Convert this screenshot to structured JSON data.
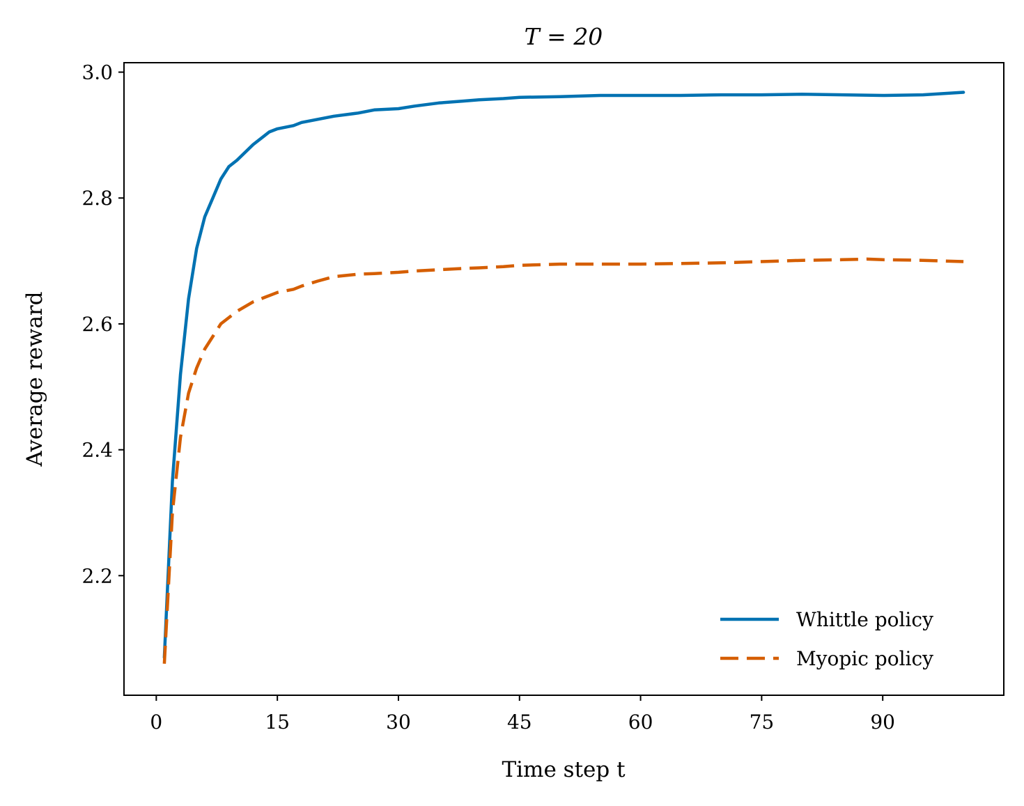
{
  "chart_data": {
    "type": "line",
    "title": "T = 20",
    "xlabel": "Time step t",
    "ylabel": "Average reward",
    "xlim": [
      -4,
      105
    ],
    "ylim": [
      2.01,
      3.015
    ],
    "xticks": [
      0,
      15,
      30,
      45,
      60,
      75,
      90
    ],
    "xtick_labels": [
      "0",
      "15",
      "30",
      "45",
      "60",
      "75",
      "90"
    ],
    "yticks": [
      2.2,
      2.4,
      2.6,
      2.8,
      3.0
    ],
    "ytick_labels": [
      "2.2",
      "2.4",
      "2.6",
      "2.8",
      "3.0"
    ],
    "grid": false,
    "legend_position": "bottom-right",
    "series": [
      {
        "name": "Whittle policy",
        "color": "#0072B2",
        "style": "solid",
        "x": [
          1,
          2,
          3,
          4,
          5,
          6,
          7,
          8,
          9,
          10,
          12,
          14,
          15,
          17,
          18,
          20,
          22,
          25,
          27,
          30,
          32,
          35,
          38,
          40,
          43,
          45,
          50,
          55,
          60,
          65,
          70,
          75,
          80,
          85,
          90,
          95,
          100
        ],
        "y": [
          2.07,
          2.35,
          2.52,
          2.64,
          2.72,
          2.77,
          2.8,
          2.83,
          2.85,
          2.86,
          2.885,
          2.905,
          2.91,
          2.915,
          2.92,
          2.925,
          2.93,
          2.935,
          2.94,
          2.942,
          2.946,
          2.951,
          2.954,
          2.956,
          2.958,
          2.96,
          2.961,
          2.963,
          2.963,
          2.963,
          2.964,
          2.964,
          2.965,
          2.964,
          2.963,
          2.964,
          2.968
        ]
      },
      {
        "name": "Myopic policy",
        "color": "#D55E00",
        "style": "dashed",
        "x": [
          1,
          2,
          3,
          4,
          5,
          6,
          7,
          8,
          9,
          10,
          12,
          14,
          15,
          17,
          18,
          20,
          22,
          25,
          27,
          30,
          32,
          35,
          38,
          40,
          43,
          45,
          50,
          55,
          60,
          65,
          70,
          75,
          80,
          85,
          88,
          90,
          95,
          100
        ],
        "y": [
          2.06,
          2.3,
          2.42,
          2.49,
          2.53,
          2.56,
          2.58,
          2.6,
          2.61,
          2.62,
          2.635,
          2.645,
          2.65,
          2.655,
          2.66,
          2.668,
          2.675,
          2.679,
          2.68,
          2.682,
          2.684,
          2.686,
          2.688,
          2.689,
          2.691,
          2.693,
          2.695,
          2.695,
          2.695,
          2.696,
          2.697,
          2.699,
          2.701,
          2.702,
          2.703,
          2.702,
          2.701,
          2.699
        ]
      }
    ]
  }
}
